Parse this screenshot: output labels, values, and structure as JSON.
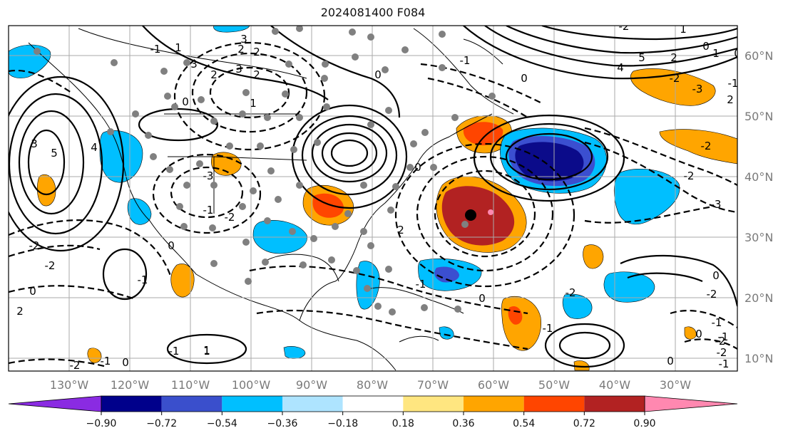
{
  "title": "2024081400 F084",
  "map": {
    "lon_labels": [
      "130°W",
      "120°W",
      "110°W",
      "100°W",
      "90°W",
      "80°W",
      "70°W",
      "60°W",
      "50°W",
      "40°W",
      "30°W"
    ],
    "lat_labels": [
      "60°N",
      "50°N",
      "40°N",
      "30°N",
      "20°N",
      "10°N"
    ],
    "contour_labels": [
      "3",
      "2",
      "2",
      "3",
      "3",
      "5",
      "4",
      "0",
      "2",
      "1",
      "0",
      "2",
      "-3",
      "-2",
      "-1",
      "-2",
      "-2",
      "0",
      "2",
      "-1",
      "0",
      "-2",
      "-1",
      "1",
      "2",
      "0",
      "0",
      "-1",
      "-2",
      "-3",
      "-2",
      "-3",
      "-2",
      "2",
      "-1",
      "1",
      "0",
      "-2",
      "1",
      "0",
      "-2",
      "-1",
      "0",
      "-1",
      "0",
      "-2",
      "-1",
      "-2",
      "-1",
      "0",
      "-1",
      "0",
      "-1",
      "1",
      "2",
      "3",
      "4",
      "5",
      "-1",
      "0",
      "-2",
      "1"
    ],
    "anomaly_colors": {
      "strong_negative": "#0b0b8a",
      "medium_negative": "#3b4fd0",
      "negative": "#00bfff",
      "positive": "#ffa500",
      "medium_positive": "#ff4500",
      "strong_positive": "#b22222",
      "extreme_positive": "#ff88b0"
    }
  },
  "colorbar": {
    "tick_labels": [
      "−0.90",
      "−0.72",
      "−0.54",
      "−0.36",
      "−0.18",
      "0.18",
      "0.36",
      "0.54",
      "0.72",
      "0.90"
    ],
    "colors": [
      "#8a2be2",
      "#00008b",
      "#3a4fcc",
      "#00bfff",
      "#aee4ff",
      "#ffffff",
      "#ffe680",
      "#ffa500",
      "#ff4500",
      "#b22222",
      "#ff88b0"
    ]
  }
}
